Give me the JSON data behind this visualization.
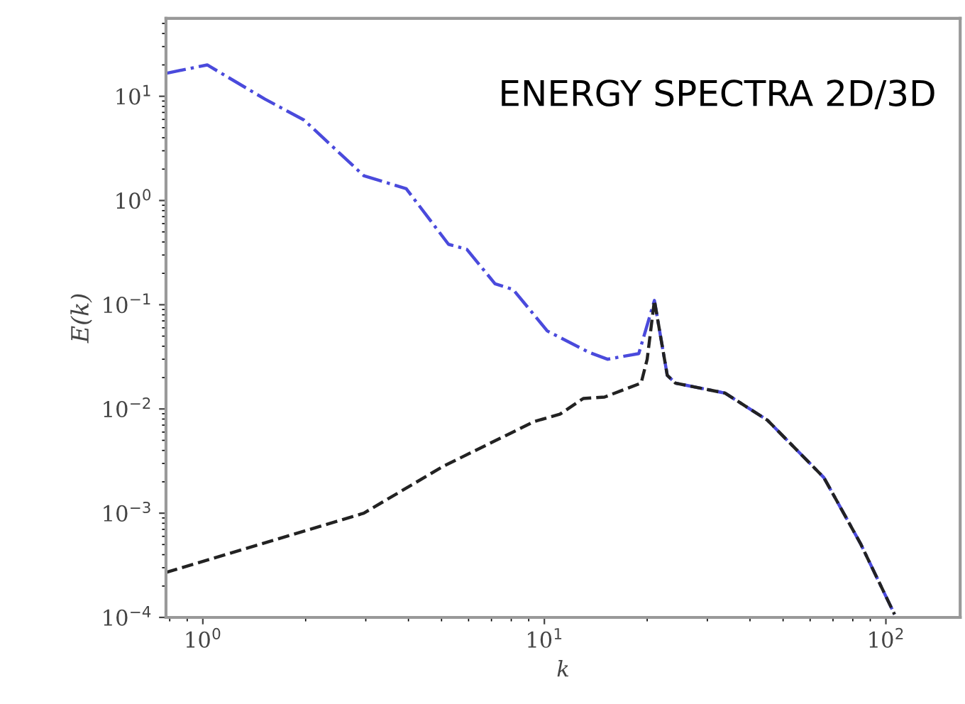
{
  "chart_data": {
    "type": "line",
    "xlabel": "k",
    "ylabel": "E(k)",
    "log": "xy",
    "marker": "none",
    "annotations": [
      "ENERGY SPECTRA 2D/3D"
    ],
    "xlim": [
      0.78,
      165
    ],
    "ylim": [
      0.0001,
      56
    ],
    "xticks": [
      {
        "value": 1,
        "label": "10$^{0}$"
      },
      {
        "value": 10,
        "label": "10$^{1}$"
      },
      {
        "value": 100,
        "label": "10$^{2}$"
      }
    ],
    "yticks": [
      {
        "value": 0.0001,
        "label": "10$^{−4}$"
      },
      {
        "value": 0.001,
        "label": "10$^{−3}$"
      },
      {
        "value": 0.01,
        "label": "10$^{−2}$"
      },
      {
        "value": 0.1,
        "label": "10$^{−1}$"
      },
      {
        "value": 1,
        "label": "10$^{0}$"
      },
      {
        "value": 10,
        "label": "10$^{1}$"
      }
    ],
    "series": [
      {
        "color": "#4a4adc",
        "line_style": "dashdot",
        "x": [
          0.78,
          1.03,
          1.52,
          1.98,
          2.96,
          3.94,
          5.24,
          5.93,
          7.17,
          8.1,
          10.2,
          13.5,
          15.3,
          18.9,
          21,
          22.9,
          24.2,
          33.8,
          45,
          65.8,
          84.3,
          106
        ],
        "values": [
          16.6,
          20,
          9.4,
          5.9,
          1.73,
          1.3,
          0.38,
          0.34,
          0.159,
          0.14,
          0.056,
          0.035,
          0.03,
          0.034,
          0.11,
          0.021,
          0.0177,
          0.0142,
          0.0078,
          0.0022,
          0.00051,
          0.000107
        ]
      },
      {
        "color": "#222222",
        "line_style": "dashed",
        "x": [
          0.78,
          2.96,
          5.04,
          9.36,
          11.1,
          13.0,
          15.0,
          19.2,
          20,
          21,
          22.9,
          24.2,
          33.8,
          45,
          65.8,
          84.3,
          106
        ],
        "values": [
          0.00027,
          0.001,
          0.0028,
          0.0076,
          0.0089,
          0.0126,
          0.013,
          0.0177,
          0.03,
          0.11,
          0.021,
          0.0177,
          0.0142,
          0.0078,
          0.0022,
          0.00051,
          0.000107
        ]
      }
    ]
  }
}
